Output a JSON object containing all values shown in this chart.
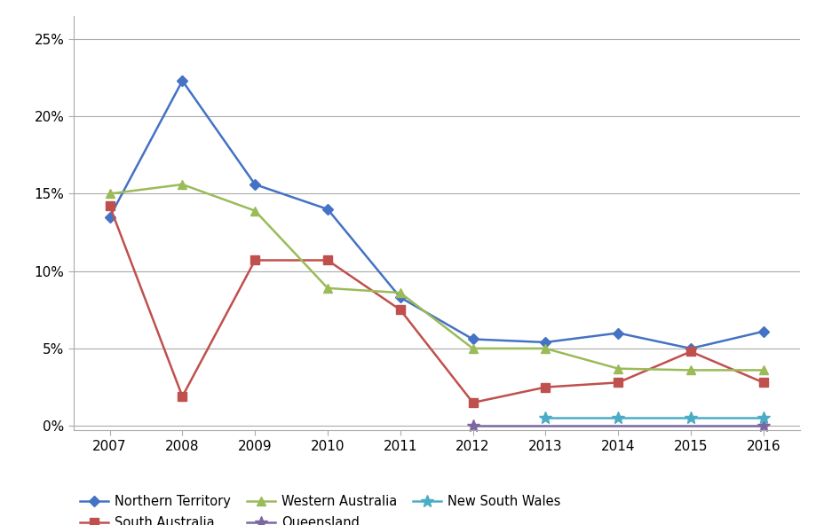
{
  "series": {
    "Northern Territory": {
      "x": [
        2007,
        2008,
        2009,
        2010,
        2011,
        2012,
        2013,
        2014,
        2015,
        2016
      ],
      "y": [
        0.135,
        0.223,
        0.156,
        0.14,
        0.083,
        0.056,
        0.054,
        0.06,
        0.05,
        0.061
      ],
      "color": "#4472C4",
      "marker": "D",
      "markersize": 6
    },
    "South Australia": {
      "x": [
        2007,
        2008,
        2009,
        2010,
        2011,
        2012,
        2013,
        2014,
        2015,
        2016
      ],
      "y": [
        0.142,
        0.019,
        0.107,
        0.107,
        0.075,
        0.015,
        0.025,
        0.028,
        0.048,
        0.028
      ],
      "color": "#C0504D",
      "marker": "s",
      "markersize": 7
    },
    "Western Australia": {
      "x": [
        2007,
        2008,
        2009,
        2010,
        2011,
        2012,
        2013,
        2014,
        2015,
        2016
      ],
      "y": [
        0.15,
        0.156,
        0.139,
        0.089,
        0.086,
        0.05,
        0.05,
        0.037,
        0.036,
        0.036
      ],
      "color": "#9BBB59",
      "marker": "^",
      "markersize": 7
    },
    "Queensland": {
      "x": [
        2012,
        2016
      ],
      "y": [
        0.0,
        0.0
      ],
      "color": "#7B68A0",
      "marker": "*",
      "markersize": 10
    },
    "New South Wales": {
      "x": [
        2013,
        2014,
        2015,
        2016
      ],
      "y": [
        0.005,
        0.005,
        0.005,
        0.005
      ],
      "color": "#4BACC6",
      "marker": "*",
      "markersize": 10
    }
  },
  "xlim": [
    2006.5,
    2016.5
  ],
  "ylim": [
    -0.003,
    0.265
  ],
  "yticks": [
    0.0,
    0.05,
    0.1,
    0.15,
    0.2,
    0.25
  ],
  "ytick_labels": [
    "0%",
    "5%",
    "10%",
    "15%",
    "20%",
    "25%"
  ],
  "xticks": [
    2007,
    2008,
    2009,
    2010,
    2011,
    2012,
    2013,
    2014,
    2015,
    2016
  ],
  "background_color": "#FFFFFF",
  "grid_color": "#AAAAAA",
  "linewidth": 1.8,
  "legend_order": [
    "Northern Territory",
    "South Australia",
    "Western Australia",
    "Queensland",
    "New South Wales"
  ]
}
